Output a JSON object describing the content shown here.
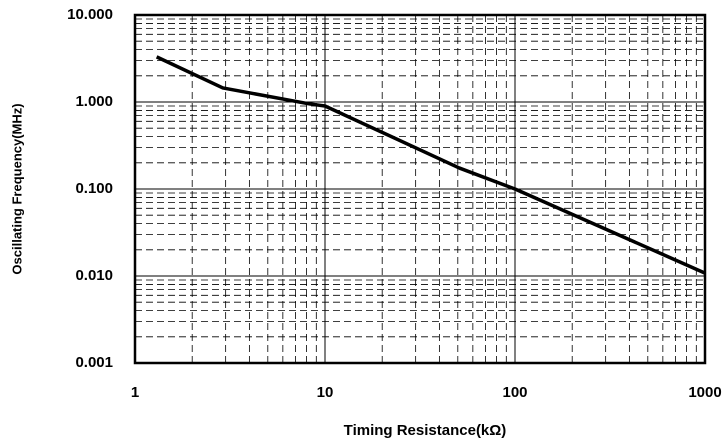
{
  "chart_data": {
    "type": "line",
    "x_label": "Timing Resistance(kΩ)",
    "y_label": "Oscillating Frequency(MHz)",
    "x_log": true,
    "y_log": true,
    "grid": true,
    "minor_grid": true,
    "xlim": [
      1,
      1000
    ],
    "xticks": [
      1,
      10,
      100,
      1000
    ],
    "ylim": [
      0.001,
      10
    ],
    "yticks": [
      {
        "value": 0.001,
        "label": "0.001"
      },
      {
        "value": 0.01,
        "label": "0.010"
      },
      {
        "value": 0.1,
        "label": "0.100"
      },
      {
        "value": 1,
        "label": "1.000"
      },
      {
        "value": 10,
        "label": "10.000"
      }
    ],
    "series": [
      {
        "name": null,
        "color": "#000000",
        "x": [
          1.3,
          2.9,
          8.3,
          10,
          51,
          100,
          1000
        ],
        "values": [
          3.3,
          1.45,
          0.95,
          0.9,
          0.174,
          0.1,
          0.0108
        ]
      }
    ]
  }
}
